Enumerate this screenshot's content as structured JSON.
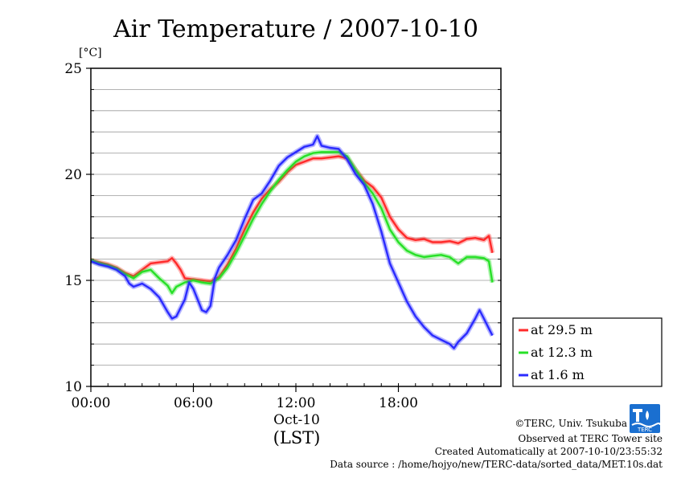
{
  "chart_data": {
    "type": "line",
    "title": "Air Temperature / 2007-10-10",
    "y_unit": "[°C]",
    "ylim": [
      10,
      25
    ],
    "yticks": [
      "25",
      "20",
      "15",
      "10"
    ],
    "xlim_hours": [
      0,
      24
    ],
    "xticks": [
      "00:00",
      "06:00",
      "12:00",
      "18:00"
    ],
    "x_date_label": "Oct-10",
    "x_axis_label": "(LST)",
    "grid": "horizontal, every 1 °C",
    "legend_placement": "right",
    "series": [
      {
        "name": "at 29.5 m",
        "color": "#ff2a2a",
        "points": [
          [
            0,
            15.95
          ],
          [
            0.5,
            15.85
          ],
          [
            1,
            15.75
          ],
          [
            1.5,
            15.6
          ],
          [
            2,
            15.35
          ],
          [
            2.5,
            15.2
          ],
          [
            3,
            15.5
          ],
          [
            3.5,
            15.8
          ],
          [
            4,
            15.85
          ],
          [
            4.5,
            15.9
          ],
          [
            4.75,
            16.05
          ],
          [
            5,
            15.8
          ],
          [
            5.25,
            15.5
          ],
          [
            5.5,
            15.1
          ],
          [
            6,
            15.05
          ],
          [
            6.5,
            15.0
          ],
          [
            7,
            14.95
          ],
          [
            7.5,
            15.15
          ],
          [
            8,
            15.75
          ],
          [
            8.5,
            16.5
          ],
          [
            9,
            17.4
          ],
          [
            9.5,
            18.2
          ],
          [
            10,
            18.85
          ],
          [
            10.5,
            19.3
          ],
          [
            11,
            19.65
          ],
          [
            11.5,
            20.1
          ],
          [
            12,
            20.45
          ],
          [
            12.5,
            20.6
          ],
          [
            13,
            20.75
          ],
          [
            13.5,
            20.75
          ],
          [
            14,
            20.8
          ],
          [
            14.5,
            20.85
          ],
          [
            15,
            20.75
          ],
          [
            15.5,
            20.2
          ],
          [
            16,
            19.7
          ],
          [
            16.5,
            19.4
          ],
          [
            17,
            18.9
          ],
          [
            17.5,
            18.0
          ],
          [
            18,
            17.4
          ],
          [
            18.5,
            17.0
          ],
          [
            19,
            16.9
          ],
          [
            19.5,
            16.95
          ],
          [
            20,
            16.8
          ],
          [
            20.5,
            16.8
          ],
          [
            21,
            16.85
          ],
          [
            21.5,
            16.75
          ],
          [
            22,
            16.95
          ],
          [
            22.5,
            17.0
          ],
          [
            23,
            16.9
          ],
          [
            23.3,
            17.1
          ],
          [
            23.5,
            16.3
          ]
        ]
      },
      {
        "name": "at 12.3 m",
        "color": "#27e027",
        "points": [
          [
            0,
            15.95
          ],
          [
            0.5,
            15.8
          ],
          [
            1,
            15.7
          ],
          [
            1.5,
            15.55
          ],
          [
            2,
            15.3
          ],
          [
            2.5,
            15.1
          ],
          [
            3,
            15.4
          ],
          [
            3.5,
            15.5
          ],
          [
            4,
            15.1
          ],
          [
            4.5,
            14.75
          ],
          [
            4.75,
            14.4
          ],
          [
            5,
            14.7
          ],
          [
            5.5,
            14.9
          ],
          [
            6,
            15.0
          ],
          [
            6.5,
            14.9
          ],
          [
            7,
            14.85
          ],
          [
            7.5,
            15.1
          ],
          [
            8,
            15.6
          ],
          [
            8.5,
            16.3
          ],
          [
            9,
            17.1
          ],
          [
            9.5,
            17.9
          ],
          [
            10,
            18.6
          ],
          [
            10.5,
            19.2
          ],
          [
            11,
            19.75
          ],
          [
            11.5,
            20.2
          ],
          [
            12,
            20.6
          ],
          [
            12.5,
            20.85
          ],
          [
            13,
            21.0
          ],
          [
            13.5,
            21.05
          ],
          [
            14,
            21.05
          ],
          [
            14.5,
            21.05
          ],
          [
            15,
            20.85
          ],
          [
            15.5,
            20.2
          ],
          [
            16,
            19.6
          ],
          [
            16.5,
            19.1
          ],
          [
            17,
            18.4
          ],
          [
            17.5,
            17.4
          ],
          [
            18,
            16.8
          ],
          [
            18.5,
            16.4
          ],
          [
            19,
            16.2
          ],
          [
            19.5,
            16.1
          ],
          [
            20,
            16.15
          ],
          [
            20.5,
            16.2
          ],
          [
            21,
            16.1
          ],
          [
            21.5,
            15.8
          ],
          [
            22,
            16.1
          ],
          [
            22.5,
            16.1
          ],
          [
            23,
            16.05
          ],
          [
            23.3,
            15.9
          ],
          [
            23.5,
            14.9
          ]
        ]
      },
      {
        "name": "at 1.6 m",
        "color": "#2b2bff",
        "points": [
          [
            0,
            15.9
          ],
          [
            0.5,
            15.75
          ],
          [
            1,
            15.65
          ],
          [
            1.5,
            15.5
          ],
          [
            2,
            15.2
          ],
          [
            2.25,
            14.85
          ],
          [
            2.5,
            14.7
          ],
          [
            3,
            14.85
          ],
          [
            3.5,
            14.6
          ],
          [
            4,
            14.2
          ],
          [
            4.5,
            13.5
          ],
          [
            4.75,
            13.2
          ],
          [
            5,
            13.3
          ],
          [
            5.5,
            14.1
          ],
          [
            5.75,
            14.9
          ],
          [
            6,
            14.6
          ],
          [
            6.25,
            14.1
          ],
          [
            6.5,
            13.6
          ],
          [
            6.75,
            13.5
          ],
          [
            7,
            13.8
          ],
          [
            7.25,
            15.1
          ],
          [
            7.5,
            15.6
          ],
          [
            8,
            16.2
          ],
          [
            8.5,
            16.9
          ],
          [
            9,
            17.9
          ],
          [
            9.5,
            18.8
          ],
          [
            10,
            19.1
          ],
          [
            10.5,
            19.7
          ],
          [
            11,
            20.4
          ],
          [
            11.5,
            20.8
          ],
          [
            12,
            21.05
          ],
          [
            12.5,
            21.3
          ],
          [
            13,
            21.4
          ],
          [
            13.25,
            21.8
          ],
          [
            13.5,
            21.35
          ],
          [
            14,
            21.25
          ],
          [
            14.5,
            21.2
          ],
          [
            15,
            20.7
          ],
          [
            15.5,
            20.0
          ],
          [
            16,
            19.5
          ],
          [
            16.5,
            18.6
          ],
          [
            17,
            17.3
          ],
          [
            17.5,
            15.8
          ],
          [
            18,
            14.9
          ],
          [
            18.5,
            14.0
          ],
          [
            19,
            13.3
          ],
          [
            19.5,
            12.8
          ],
          [
            20,
            12.4
          ],
          [
            20.5,
            12.2
          ],
          [
            21,
            12.0
          ],
          [
            21.25,
            11.8
          ],
          [
            21.5,
            12.1
          ],
          [
            22,
            12.5
          ],
          [
            22.5,
            13.2
          ],
          [
            22.75,
            13.6
          ],
          [
            23,
            13.2
          ],
          [
            23.25,
            12.8
          ],
          [
            23.5,
            12.4
          ]
        ]
      }
    ]
  },
  "credits": {
    "copyright": "©TERC, Univ. Tsukuba",
    "observed": "Observed at TERC Tower site",
    "created": "Created Automatically at 2007-10-10/23:55:32",
    "source": "Data source : /home/hojyo/new/TERC-data/sorted_data/MET.10s.dat",
    "logo_text": "TERC"
  }
}
